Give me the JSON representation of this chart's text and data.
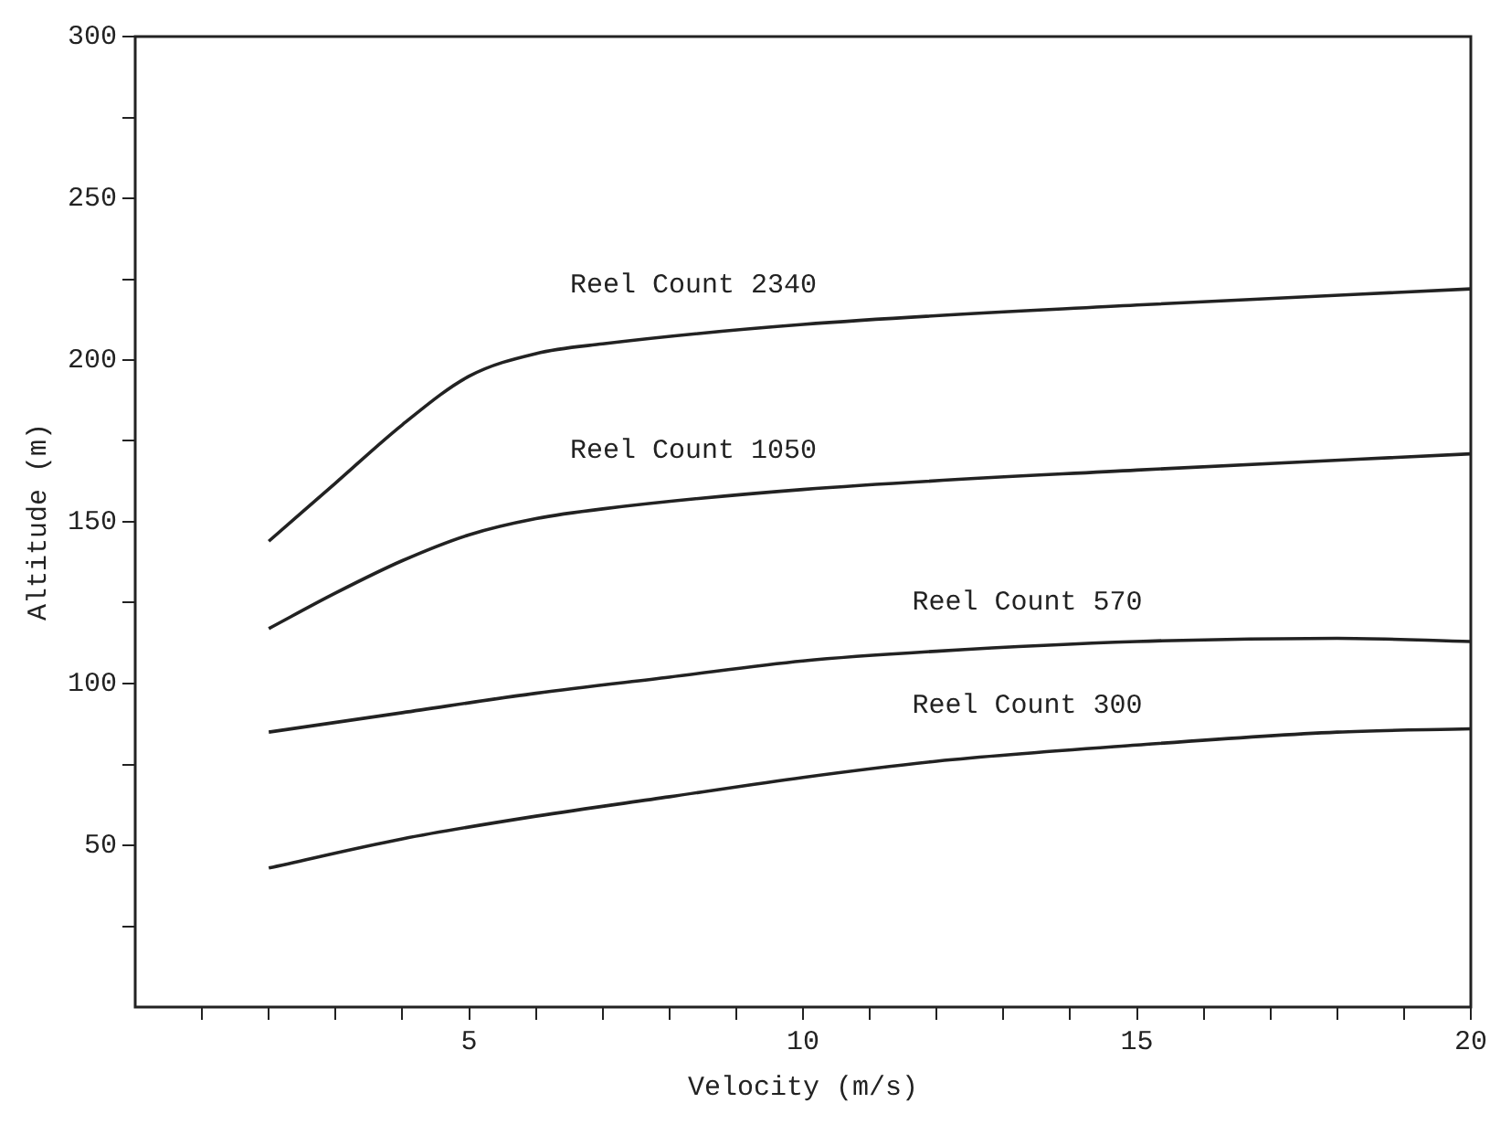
{
  "chart_data": {
    "type": "line",
    "xlabel": "Velocity (m/s)",
    "ylabel": "Altitude (m)",
    "xlim": [
      0,
      20
    ],
    "ylim": [
      0,
      300
    ],
    "xticks": [
      {
        "value": 1,
        "label": null
      },
      {
        "value": 2,
        "label": null
      },
      {
        "value": 3,
        "label": null
      },
      {
        "value": 4,
        "label": null
      },
      5,
      {
        "value": 6,
        "label": null
      },
      {
        "value": 7,
        "label": null
      },
      {
        "value": 8,
        "label": null
      },
      {
        "value": 9,
        "label": null
      },
      10,
      {
        "value": 11,
        "label": null
      },
      {
        "value": 12,
        "label": null
      },
      {
        "value": 13,
        "label": null
      },
      {
        "value": 14,
        "label": null
      },
      15,
      {
        "value": 16,
        "label": null
      },
      {
        "value": 17,
        "label": null
      },
      {
        "value": 18,
        "label": null
      },
      {
        "value": 19,
        "label": null
      },
      20
    ],
    "yticks": [
      {
        "value": 25,
        "label": null
      },
      50,
      {
        "value": 75,
        "label": null
      },
      100,
      {
        "value": 125,
        "label": null
      },
      150,
      {
        "value": 175,
        "label": null
      },
      200,
      {
        "value": 225,
        "label": null
      },
      250,
      {
        "value": 275,
        "label": null
      },
      300
    ],
    "grid": false,
    "legend": false,
    "marker": "none",
    "line_style": "solid",
    "series": [
      {
        "name": "Reel Count 2340",
        "color": "#222222",
        "x": [
          2,
          3,
          4,
          5,
          6,
          7,
          10,
          15,
          20
        ],
        "values": [
          144,
          162,
          180,
          195,
          202,
          205,
          211,
          217,
          222
        ]
      },
      {
        "name": "Reel Count 1050",
        "color": "#222222",
        "x": [
          2,
          3,
          4,
          5,
          6,
          7,
          10,
          15,
          20
        ],
        "values": [
          117,
          128,
          138,
          146,
          151,
          154,
          160,
          166,
          171
        ]
      },
      {
        "name": "Reel Count 570",
        "color": "#222222",
        "x": [
          2,
          4,
          6,
          8,
          10,
          12,
          15,
          18,
          20
        ],
        "values": [
          85,
          91,
          97,
          102,
          107,
          110,
          113,
          114,
          113
        ]
      },
      {
        "name": "Reel Count 300",
        "color": "#222222",
        "x": [
          2,
          4,
          6,
          8,
          10,
          12,
          15,
          18,
          20
        ],
        "values": [
          43,
          52,
          59,
          65,
          71,
          76,
          81,
          85,
          86
        ]
      }
    ]
  }
}
